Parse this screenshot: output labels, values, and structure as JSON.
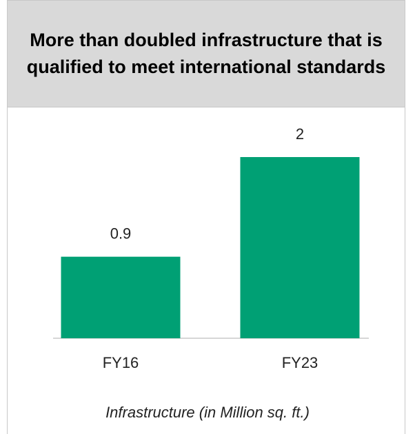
{
  "chart_data": {
    "type": "bar",
    "title": "More than doubled infrastructure that is qualified to meet international standards",
    "categories": [
      "FY16",
      "FY23"
    ],
    "values": [
      0.9,
      2
    ],
    "color": "#00a074",
    "xlabel": "Infrastructure (in Million sq. ft.)"
  }
}
